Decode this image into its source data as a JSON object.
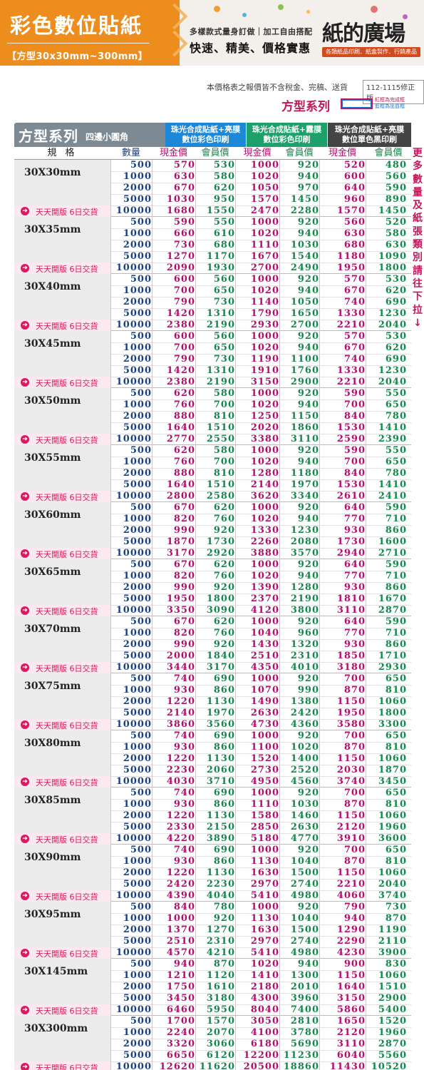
{
  "banner": {
    "title": "彩色數位貼紙",
    "subtitle": "【方型30x30mm~300mm】",
    "tagline1": "多樣款式量身訂做｜加工自由搭配",
    "tagline2": "快速、精美、價格實惠",
    "brand": "紙的廣場",
    "brand_sub": "各類紙品印刷．紙盒製作．行銷產品"
  },
  "note": "本價格表之報價皆不含稅金、完稿、送貨",
  "version": "112-1115修正版",
  "series_title": "方型系列",
  "legend": {
    "red": "紅框為完成框",
    "blue": "藍框為出血框"
  },
  "table": {
    "series_label": "方型系列",
    "series_label_sub": "四邊小圓角",
    "groups": [
      {
        "line1": "珠光合成貼紙+亮膜",
        "line2": "數位彩色印刷"
      },
      {
        "line1": "珠光合成貼紙+霧膜",
        "line2": "數位彩色印刷"
      },
      {
        "line1": "珠光合成貼紙+亮膜",
        "line2": "數位單色黑印刷"
      }
    ],
    "col_headers": {
      "spec": "規 格",
      "qty": "數量",
      "cash": "現金價",
      "member": "會員價"
    },
    "open_label": "天天開版 6日交貨",
    "rows": [
      {
        "size": "30X30mm",
        "prices": [
          [
            "500",
            "570",
            "530",
            "1000",
            "920",
            "520",
            "480"
          ],
          [
            "1000",
            "630",
            "580",
            "1020",
            "940",
            "600",
            "560"
          ],
          [
            "2000",
            "670",
            "620",
            "1050",
            "970",
            "640",
            "590"
          ],
          [
            "5000",
            "1030",
            "950",
            "1570",
            "1450",
            "960",
            "890"
          ],
          [
            "10000",
            "1680",
            "1550",
            "2470",
            "2280",
            "1570",
            "1450"
          ]
        ]
      },
      {
        "size": "30X35mm",
        "prices": [
          [
            "500",
            "590",
            "550",
            "1000",
            "920",
            "560",
            "520"
          ],
          [
            "1000",
            "660",
            "610",
            "1020",
            "940",
            "630",
            "580"
          ],
          [
            "2000",
            "730",
            "680",
            "1110",
            "1030",
            "680",
            "630"
          ],
          [
            "5000",
            "1270",
            "1170",
            "1670",
            "1540",
            "1180",
            "1090"
          ],
          [
            "10000",
            "2090",
            "1930",
            "2700",
            "2490",
            "1950",
            "1800"
          ]
        ]
      },
      {
        "size": "30X40mm",
        "prices": [
          [
            "500",
            "600",
            "560",
            "1000",
            "920",
            "570",
            "530"
          ],
          [
            "1000",
            "700",
            "650",
            "1020",
            "940",
            "670",
            "620"
          ],
          [
            "2000",
            "790",
            "730",
            "1140",
            "1050",
            "740",
            "690"
          ],
          [
            "5000",
            "1420",
            "1310",
            "1790",
            "1650",
            "1330",
            "1230"
          ],
          [
            "10000",
            "2380",
            "2190",
            "2930",
            "2700",
            "2210",
            "2040"
          ]
        ]
      },
      {
        "size": "30X45mm",
        "prices": [
          [
            "500",
            "600",
            "560",
            "1000",
            "920",
            "570",
            "530"
          ],
          [
            "1000",
            "700",
            "650",
            "1020",
            "940",
            "670",
            "620"
          ],
          [
            "2000",
            "790",
            "730",
            "1190",
            "1100",
            "740",
            "690"
          ],
          [
            "5000",
            "1420",
            "1310",
            "1910",
            "1760",
            "1330",
            "1230"
          ],
          [
            "10000",
            "2380",
            "2190",
            "3150",
            "2900",
            "2210",
            "2040"
          ]
        ]
      },
      {
        "size": "30X50mm",
        "prices": [
          [
            "500",
            "620",
            "580",
            "1000",
            "920",
            "590",
            "550"
          ],
          [
            "1000",
            "760",
            "700",
            "1020",
            "940",
            "700",
            "650"
          ],
          [
            "2000",
            "880",
            "810",
            "1250",
            "1150",
            "840",
            "780"
          ],
          [
            "5000",
            "1640",
            "1510",
            "2020",
            "1860",
            "1530",
            "1410"
          ],
          [
            "10000",
            "2770",
            "2550",
            "3380",
            "3110",
            "2590",
            "2390"
          ]
        ]
      },
      {
        "size": "30X55mm",
        "prices": [
          [
            "500",
            "620",
            "580",
            "1000",
            "920",
            "590",
            "550"
          ],
          [
            "1000",
            "760",
            "700",
            "1020",
            "940",
            "700",
            "650"
          ],
          [
            "2000",
            "880",
            "810",
            "1280",
            "1180",
            "840",
            "780"
          ],
          [
            "5000",
            "1640",
            "1510",
            "2140",
            "1970",
            "1530",
            "1410"
          ],
          [
            "10000",
            "2800",
            "2580",
            "3620",
            "3340",
            "2610",
            "2410"
          ]
        ]
      },
      {
        "size": "30X60mm",
        "prices": [
          [
            "500",
            "670",
            "620",
            "1000",
            "920",
            "640",
            "590"
          ],
          [
            "1000",
            "820",
            "760",
            "1020",
            "940",
            "770",
            "710"
          ],
          [
            "2000",
            "990",
            "920",
            "1330",
            "1230",
            "930",
            "860"
          ],
          [
            "5000",
            "1870",
            "1730",
            "2260",
            "2080",
            "1730",
            "1600"
          ],
          [
            "10000",
            "3170",
            "2920",
            "3880",
            "3570",
            "2940",
            "2710"
          ]
        ]
      },
      {
        "size": "30X65mm",
        "prices": [
          [
            "500",
            "670",
            "620",
            "1000",
            "920",
            "640",
            "590"
          ],
          [
            "1000",
            "820",
            "760",
            "1020",
            "940",
            "770",
            "710"
          ],
          [
            "2000",
            "990",
            "920",
            "1390",
            "1280",
            "930",
            "860"
          ],
          [
            "5000",
            "1950",
            "1800",
            "2370",
            "2190",
            "1810",
            "1670"
          ],
          [
            "10000",
            "3350",
            "3090",
            "4120",
            "3800",
            "3110",
            "2870"
          ]
        ]
      },
      {
        "size": "30X70mm",
        "prices": [
          [
            "500",
            "670",
            "620",
            "1000",
            "920",
            "640",
            "590"
          ],
          [
            "1000",
            "820",
            "760",
            "1040",
            "960",
            "770",
            "710"
          ],
          [
            "2000",
            "990",
            "920",
            "1430",
            "1320",
            "930",
            "860"
          ],
          [
            "5000",
            "2000",
            "1840",
            "2510",
            "2310",
            "1850",
            "1710"
          ],
          [
            "10000",
            "3440",
            "3170",
            "4350",
            "4010",
            "3180",
            "2930"
          ]
        ]
      },
      {
        "size": "30X75mm",
        "prices": [
          [
            "500",
            "740",
            "690",
            "1000",
            "920",
            "700",
            "650"
          ],
          [
            "1000",
            "930",
            "860",
            "1070",
            "990",
            "870",
            "810"
          ],
          [
            "2000",
            "1220",
            "1130",
            "1490",
            "1380",
            "1150",
            "1060"
          ],
          [
            "5000",
            "2140",
            "1970",
            "2630",
            "2420",
            "1950",
            "1800"
          ],
          [
            "10000",
            "3860",
            "3560",
            "4730",
            "4360",
            "3580",
            "3300"
          ]
        ]
      },
      {
        "size": "30X80mm",
        "prices": [
          [
            "500",
            "740",
            "690",
            "1000",
            "920",
            "700",
            "650"
          ],
          [
            "1000",
            "930",
            "860",
            "1100",
            "1020",
            "870",
            "810"
          ],
          [
            "2000",
            "1220",
            "1130",
            "1520",
            "1400",
            "1150",
            "1060"
          ],
          [
            "5000",
            "2230",
            "2060",
            "2730",
            "2520",
            "2030",
            "1870"
          ],
          [
            "10000",
            "4030",
            "3710",
            "4950",
            "4560",
            "3740",
            "3450"
          ]
        ]
      },
      {
        "size": "30X85mm",
        "prices": [
          [
            "500",
            "740",
            "690",
            "1000",
            "920",
            "700",
            "650"
          ],
          [
            "1000",
            "930",
            "860",
            "1110",
            "1030",
            "870",
            "810"
          ],
          [
            "2000",
            "1220",
            "1130",
            "1580",
            "1460",
            "1150",
            "1060"
          ],
          [
            "5000",
            "2330",
            "2150",
            "2850",
            "2630",
            "2120",
            "1960"
          ],
          [
            "10000",
            "4220",
            "3890",
            "5180",
            "4770",
            "3910",
            "3600"
          ]
        ]
      },
      {
        "size": "30X90mm",
        "prices": [
          [
            "500",
            "740",
            "690",
            "1000",
            "920",
            "700",
            "650"
          ],
          [
            "1000",
            "930",
            "860",
            "1130",
            "1040",
            "870",
            "810"
          ],
          [
            "2000",
            "1220",
            "1130",
            "1630",
            "1500",
            "1150",
            "1060"
          ],
          [
            "5000",
            "2420",
            "2230",
            "2970",
            "2740",
            "2210",
            "2040"
          ],
          [
            "10000",
            "4390",
            "4040",
            "5410",
            "4980",
            "4060",
            "3740"
          ]
        ]
      },
      {
        "size": "30X95mm",
        "prices": [
          [
            "500",
            "840",
            "780",
            "1000",
            "920",
            "790",
            "730"
          ],
          [
            "1000",
            "1000",
            "920",
            "1130",
            "1040",
            "940",
            "870"
          ],
          [
            "2000",
            "1370",
            "1270",
            "1630",
            "1500",
            "1290",
            "1190"
          ],
          [
            "5000",
            "2510",
            "2310",
            "2970",
            "2740",
            "2290",
            "2110"
          ],
          [
            "10000",
            "4570",
            "4210",
            "5410",
            "4980",
            "4230",
            "3900"
          ]
        ]
      },
      {
        "size": "30X145mm",
        "prices": [
          [
            "500",
            "940",
            "870",
            "1020",
            "940",
            "900",
            "830"
          ],
          [
            "1000",
            "1210",
            "1120",
            "1410",
            "1300",
            "1150",
            "1060"
          ],
          [
            "2000",
            "1750",
            "1610",
            "2180",
            "2010",
            "1640",
            "1510"
          ],
          [
            "5000",
            "3450",
            "3180",
            "4300",
            "3960",
            "3150",
            "2900"
          ],
          [
            "10000",
            "6460",
            "5950",
            "8040",
            "7400",
            "5860",
            "5400"
          ]
        ]
      },
      {
        "size": "30X300mm",
        "prices": [
          [
            "500",
            "1700",
            "1570",
            "3050",
            "2810",
            "1650",
            "1520"
          ],
          [
            "1000",
            "2240",
            "2070",
            "4100",
            "3780",
            "2120",
            "1960"
          ],
          [
            "2000",
            "3320",
            "3060",
            "6180",
            "5690",
            "3110",
            "2870"
          ],
          [
            "5000",
            "6650",
            "6120",
            "12200",
            "11230",
            "6040",
            "5560"
          ],
          [
            "10000",
            "12620",
            "11620",
            "20500",
            "18860",
            "11430",
            "10520"
          ]
        ]
      }
    ]
  },
  "side_note": "更多數量及紙張類別請往下拉↓",
  "colors": {
    "orange": "#ec8d1e",
    "pink": "#c2185b",
    "blue": "#1e88d8",
    "green": "#1da06a",
    "dark": "#444444"
  }
}
